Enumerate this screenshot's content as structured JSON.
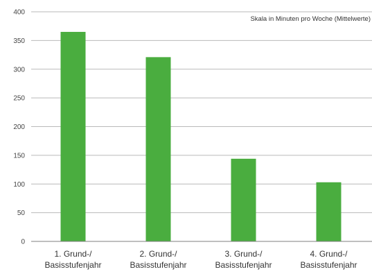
{
  "chart_data": {
    "type": "bar",
    "categories": [
      [
        "1. Grund-/",
        "Basisstufenjahr"
      ],
      [
        "2. Grund-/",
        "Basisstufenjahr"
      ],
      [
        "3. Grund-/",
        "Basisstufenjahr"
      ],
      [
        "4. Grund-/",
        "Basisstufenjahr"
      ]
    ],
    "values": [
      365,
      321,
      144,
      103
    ],
    "ylim": [
      0,
      400
    ],
    "yticks": [
      0,
      50,
      100,
      150,
      200,
      250,
      300,
      350,
      400
    ],
    "annotation": "Skala in Minuten pro Woche (Mittelwerte)",
    "grid": true,
    "colors": {
      "bar": "#4aad3f",
      "grid": "#b9b9b9",
      "axis": "#7f7f7f"
    }
  }
}
